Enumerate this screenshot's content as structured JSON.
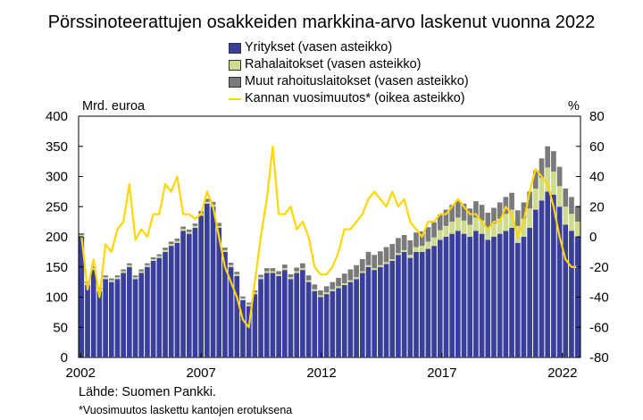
{
  "title": "Pörssinoteerattujen osakkeiden markkina-arvo laskenut vuonna 2022",
  "source": "Lähde: Suomen Pankki.",
  "note": "*Vuosimuutos laskettu kantojen erotuksena",
  "colors": {
    "yritykset": "#3b3f9c",
    "rahalaitokset": "#cfdc8f",
    "muut": "#7a7a7a",
    "kanta": "#ffd700"
  },
  "chart_data": {
    "type": "bar",
    "stacked": true,
    "title": "Pörssinoteerattujen osakkeiden markkina-arvo laskenut vuonna 2022",
    "left_axis_unit": "Mrd. euroa",
    "right_axis_unit": "%",
    "left_ylim": [
      0,
      400
    ],
    "right_ylim": [
      -80,
      80
    ],
    "left_ticks": [
      0,
      50,
      100,
      150,
      200,
      250,
      300,
      350,
      400
    ],
    "right_ticks": [
      -80,
      -60,
      -40,
      -20,
      0,
      20,
      40,
      60,
      80
    ],
    "x_ticks": [
      "2002",
      "2007",
      "2012",
      "2017",
      "2022"
    ],
    "x_range": [
      "2001-12",
      "2022-10"
    ],
    "legend": [
      "Yritykset (vasen asteikko)",
      "Rahalaitokset (vasen asteikko)",
      "Muut rahoituslaitokset (vasen asteikko)",
      "Kannan vuosimuutos* (oikea asteikko)"
    ],
    "frequency": "quarterly",
    "periods": [
      "2001Q4",
      "2002Q1",
      "2002Q2",
      "2002Q3",
      "2002Q4",
      "2003Q1",
      "2003Q2",
      "2003Q3",
      "2003Q4",
      "2004Q1",
      "2004Q2",
      "2004Q3",
      "2004Q4",
      "2005Q1",
      "2005Q2",
      "2005Q3",
      "2005Q4",
      "2006Q1",
      "2006Q2",
      "2006Q3",
      "2006Q4",
      "2007Q1",
      "2007Q2",
      "2007Q3",
      "2007Q4",
      "2008Q1",
      "2008Q2",
      "2008Q3",
      "2008Q4",
      "2009Q1",
      "2009Q2",
      "2009Q3",
      "2009Q4",
      "2010Q1",
      "2010Q2",
      "2010Q3",
      "2010Q4",
      "2011Q1",
      "2011Q2",
      "2011Q3",
      "2011Q4",
      "2012Q1",
      "2012Q2",
      "2012Q3",
      "2012Q4",
      "2013Q1",
      "2013Q2",
      "2013Q3",
      "2013Q4",
      "2014Q1",
      "2014Q2",
      "2014Q3",
      "2014Q4",
      "2015Q1",
      "2015Q2",
      "2015Q3",
      "2015Q4",
      "2016Q1",
      "2016Q2",
      "2016Q3",
      "2016Q4",
      "2017Q1",
      "2017Q2",
      "2017Q3",
      "2017Q4",
      "2018Q1",
      "2018Q2",
      "2018Q3",
      "2018Q4",
      "2019Q1",
      "2019Q2",
      "2019Q3",
      "2019Q4",
      "2020Q1",
      "2020Q2",
      "2020Q3",
      "2020Q4",
      "2021Q1",
      "2021Q2",
      "2021Q3",
      "2021Q4",
      "2022Q1",
      "2022Q2",
      "2022Q3"
    ],
    "series": [
      {
        "name": "Yritykset (vasen asteikko)",
        "axis": "left",
        "values": [
          200,
          120,
          145,
          110,
          130,
          125,
          130,
          140,
          150,
          130,
          140,
          150,
          160,
          165,
          175,
          185,
          190,
          210,
          205,
          215,
          235,
          255,
          250,
          215,
          175,
          150,
          135,
          95,
          85,
          105,
          130,
          140,
          140,
          135,
          145,
          130,
          140,
          145,
          125,
          110,
          100,
          105,
          110,
          115,
          120,
          125,
          130,
          140,
          150,
          145,
          150,
          155,
          160,
          170,
          175,
          165,
          175,
          175,
          180,
          185,
          195,
          200,
          205,
          210,
          205,
          200,
          210,
          205,
          195,
          200,
          205,
          210,
          215,
          190,
          200,
          215,
          245,
          260,
          275,
          270,
          250,
          220,
          210,
          200
        ]
      },
      {
        "name": "Rahalaitokset (vasen asteikko)",
        "axis": "left",
        "values": [
          3,
          3,
          3,
          3,
          3,
          3,
          3,
          3,
          3,
          3,
          3,
          3,
          3,
          3,
          3,
          3,
          3,
          3,
          3,
          3,
          3,
          3,
          3,
          3,
          3,
          3,
          3,
          3,
          3,
          3,
          3,
          3,
          3,
          3,
          3,
          3,
          3,
          3,
          3,
          3,
          3,
          3,
          3,
          3,
          3,
          3,
          3,
          3,
          3,
          3,
          3,
          3,
          3,
          3,
          3,
          5,
          8,
          10,
          12,
          14,
          16,
          18,
          20,
          22,
          22,
          20,
          22,
          22,
          20,
          22,
          25,
          28,
          30,
          28,
          30,
          32,
          35,
          38,
          40,
          38,
          34,
          30,
          28,
          25
        ]
      },
      {
        "name": "Muut rahoituslaitokset (vasen asteikko)",
        "axis": "left",
        "values": [
          3,
          3,
          3,
          3,
          3,
          3,
          3,
          3,
          3,
          3,
          3,
          3,
          3,
          3,
          4,
          4,
          4,
          4,
          4,
          4,
          5,
          5,
          5,
          5,
          4,
          4,
          4,
          3,
          3,
          3,
          4,
          5,
          5,
          5,
          6,
          5,
          6,
          8,
          8,
          8,
          8,
          10,
          12,
          14,
          16,
          18,
          20,
          20,
          22,
          22,
          23,
          25,
          25,
          25,
          25,
          24,
          24,
          24,
          24,
          25,
          26,
          27,
          28,
          28,
          28,
          27,
          27,
          26,
          25,
          26,
          27,
          28,
          28,
          26,
          27,
          28,
          30,
          32,
          35,
          34,
          32,
          30,
          28,
          26
        ]
      },
      {
        "name": "Kannan vuosimuutos* (oikea asteikko)",
        "axis": "right",
        "values": [
          0,
          -35,
          -15,
          -40,
          -5,
          -10,
          5,
          10,
          35,
          -2,
          5,
          0,
          15,
          15,
          35,
          30,
          40,
          15,
          15,
          12,
          15,
          30,
          20,
          0,
          -20,
          -30,
          -40,
          -55,
          -60,
          -30,
          0,
          25,
          60,
          15,
          15,
          20,
          5,
          10,
          0,
          -20,
          -25,
          -25,
          -20,
          -10,
          5,
          5,
          10,
          15,
          25,
          30,
          25,
          20,
          30,
          20,
          25,
          10,
          5,
          0,
          10,
          10,
          15,
          15,
          20,
          25,
          20,
          15,
          15,
          10,
          5,
          10,
          10,
          20,
          15,
          0,
          10,
          30,
          45,
          40,
          35,
          20,
          0,
          -15,
          -20,
          -20
        ]
      }
    ]
  }
}
